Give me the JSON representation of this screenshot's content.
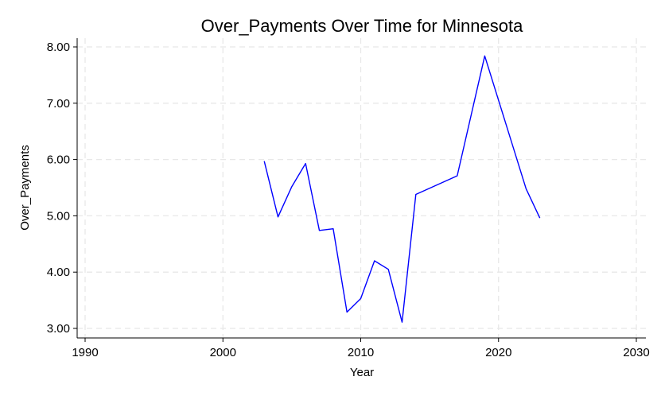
{
  "chart_data": {
    "type": "line",
    "title": "Over_Payments Over Time for Minnesota",
    "xlabel": "Year",
    "ylabel": "Over_Payments",
    "xlim": [
      1990,
      2030
    ],
    "ylim": [
      3.0,
      8.0
    ],
    "x_ticks": [
      1990,
      2000,
      2010,
      2020,
      2030
    ],
    "y_ticks": [
      3.0,
      4.0,
      5.0,
      6.0,
      7.0,
      8.0
    ],
    "y_tick_labels": [
      "3.00",
      "4.00",
      "5.00",
      "6.00",
      "7.00",
      "8.00"
    ],
    "grid": true,
    "legend": "none",
    "series": [
      {
        "color": "#0000ff",
        "x": [
          2003,
          2004,
          2005,
          2006,
          2007,
          2008,
          2009,
          2010,
          2011,
          2012,
          2013,
          2014,
          2017,
          2019,
          2022,
          2023
        ],
        "y": [
          5.97,
          4.98,
          5.52,
          5.93,
          4.74,
          4.77,
          3.29,
          3.53,
          4.2,
          4.05,
          3.11,
          5.38,
          5.71,
          7.84,
          5.48,
          4.96
        ]
      }
    ]
  }
}
